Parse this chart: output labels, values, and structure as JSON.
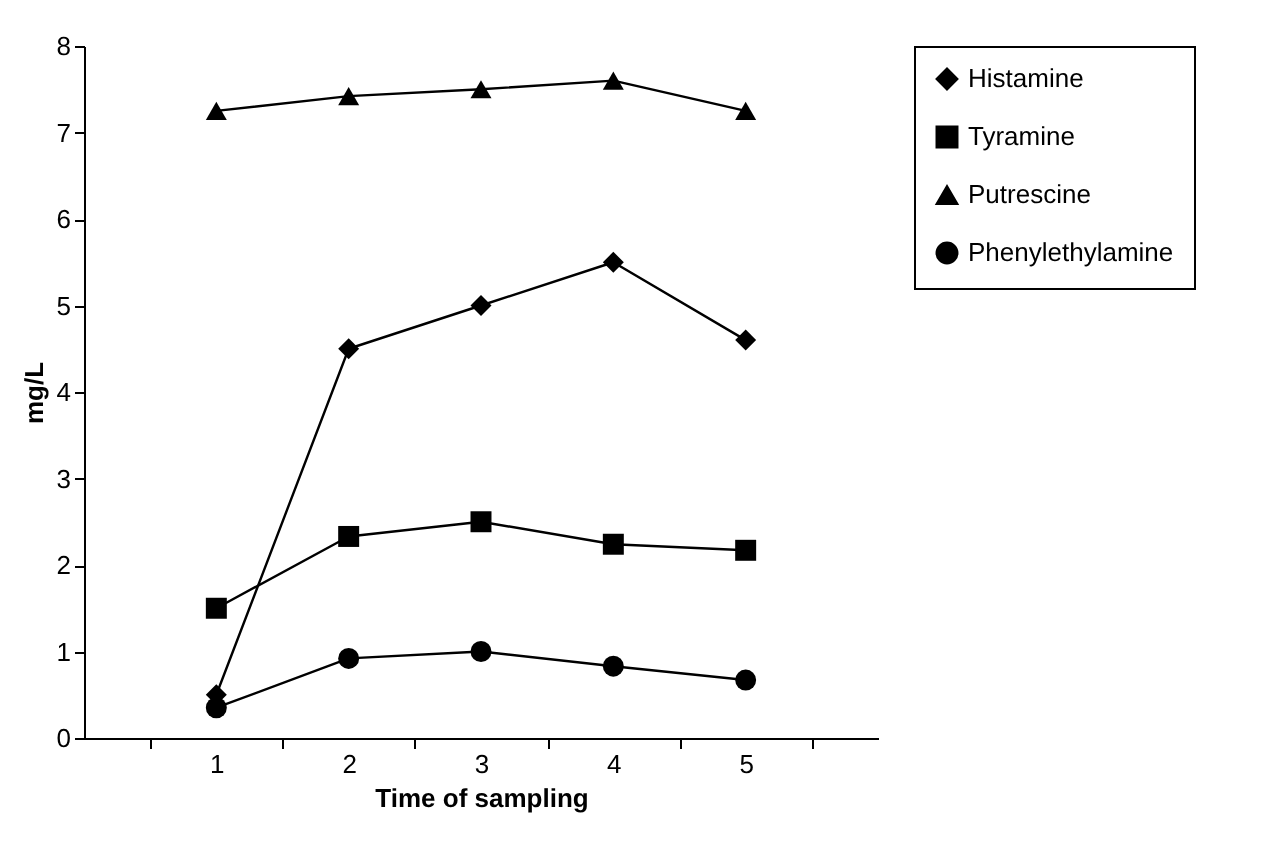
{
  "chart_data": {
    "type": "line",
    "xlabel": "Time of sampling",
    "ylabel": "mg/L",
    "categories": [
      "1",
      "2",
      "3",
      "4",
      "5"
    ],
    "series": [
      {
        "name": "Histamine",
        "color": "#000000",
        "marker": "diamond",
        "values": [
          0.5,
          4.5,
          5.0,
          5.5,
          4.6
        ]
      },
      {
        "name": "Tyramine",
        "color": "#000000",
        "marker": "square",
        "values": [
          1.5,
          2.33,
          2.5,
          2.24,
          2.17
        ]
      },
      {
        "name": "Putrescine",
        "color": "#000000",
        "marker": "triangle",
        "values": [
          7.25,
          7.42,
          7.5,
          7.6,
          7.25
        ]
      },
      {
        "name": "Phenylethylamine",
        "color": "#000000",
        "marker": "circle",
        "values": [
          0.35,
          0.92,
          1.0,
          0.83,
          0.67
        ]
      }
    ],
    "ylim": [
      0,
      8
    ],
    "yticks": [
      0,
      1,
      2,
      3,
      4,
      5,
      6,
      7,
      8
    ],
    "grid": false,
    "legend": "right",
    "line_style": "solid"
  }
}
